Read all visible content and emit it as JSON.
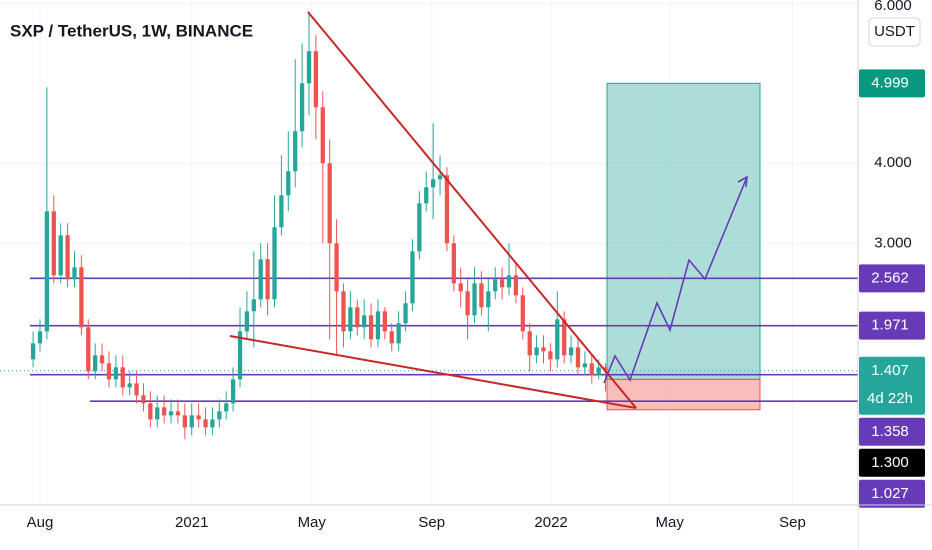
{
  "chart_data": {
    "type": "candlestick",
    "title": "SXP / TetherUS, 1W, BINANCE",
    "currency": "USDT",
    "up_color": "#26a69a",
    "down_color": "#ef5350",
    "open": [
      1.55,
      1.75,
      1.9,
      3.4,
      2.6,
      3.1,
      2.55,
      2.7,
      1.95,
      1.4,
      1.6,
      1.5,
      1.3,
      1.45,
      1.2,
      1.25,
      1.1,
      1.0,
      0.8,
      0.95,
      0.85,
      0.9,
      0.85,
      0.7,
      0.85,
      0.8,
      0.7,
      0.8,
      0.9,
      1.0,
      1.3,
      1.9,
      2.15,
      2.3,
      2.8,
      2.3,
      3.2,
      3.6,
      3.9,
      4.4,
      5.0,
      5.4,
      4.7,
      4.0,
      3.0,
      2.4,
      1.9,
      2.2,
      1.95,
      2.1,
      1.8,
      2.15,
      1.9,
      1.75,
      2.0,
      2.25,
      2.9,
      3.5,
      3.7,
      3.8,
      3.85,
      3.0,
      2.5,
      2.4,
      2.1,
      2.5,
      2.2,
      2.4,
      2.55,
      2.45,
      2.6,
      2.35,
      1.9,
      1.6,
      1.7,
      1.65,
      1.55,
      2.05,
      1.6,
      1.7,
      1.45,
      1.5,
      1.35,
      1.45
    ],
    "high": [
      1.9,
      2.05,
      4.95,
      3.6,
      3.25,
      3.25,
      2.9,
      2.85,
      2.05,
      1.75,
      1.75,
      1.65,
      1.6,
      1.6,
      1.4,
      1.4,
      1.25,
      1.15,
      1.1,
      1.1,
      1.05,
      1.05,
      1.0,
      1.0,
      1.0,
      0.95,
      0.95,
      1.05,
      1.15,
      1.45,
      2.2,
      2.4,
      2.9,
      3.0,
      3.0,
      3.6,
      4.1,
      4.4,
      5.3,
      5.5,
      5.9,
      5.6,
      4.9,
      4.3,
      3.3,
      2.5,
      2.4,
      2.3,
      2.3,
      2.25,
      2.3,
      2.2,
      2.0,
      2.15,
      2.4,
      3.05,
      3.65,
      3.9,
      4.5,
      4.1,
      3.95,
      3.1,
      2.7,
      2.55,
      2.7,
      2.65,
      2.55,
      2.7,
      2.7,
      3.0,
      2.75,
      2.45,
      2.0,
      1.85,
      1.85,
      1.75,
      2.4,
      2.15,
      1.85,
      1.8,
      1.65,
      1.6,
      1.55,
      1.5
    ],
    "low": [
      1.45,
      1.65,
      1.8,
      2.5,
      2.5,
      2.45,
      2.45,
      1.85,
      1.3,
      1.3,
      1.4,
      1.2,
      1.2,
      1.1,
      1.1,
      1.0,
      0.9,
      0.7,
      0.7,
      0.75,
      0.75,
      0.75,
      0.55,
      0.6,
      0.7,
      0.6,
      0.6,
      0.7,
      0.8,
      0.9,
      1.2,
      1.8,
      1.7,
      2.2,
      2.1,
      2.2,
      3.1,
      3.4,
      3.7,
      4.2,
      4.6,
      4.3,
      3.0,
      1.8,
      1.6,
      1.7,
      1.8,
      1.85,
      1.8,
      1.7,
      1.7,
      1.8,
      1.65,
      1.65,
      1.9,
      2.15,
      2.8,
      3.4,
      3.3,
      3.6,
      2.9,
      2.4,
      2.2,
      1.8,
      2.0,
      2.1,
      1.9,
      2.3,
      2.3,
      2.35,
      2.25,
      1.8,
      1.4,
      1.5,
      1.5,
      1.4,
      1.45,
      1.5,
      1.5,
      1.35,
      1.35,
      1.25,
      1.3,
      1.15
    ],
    "close": [
      1.75,
      1.9,
      3.4,
      2.6,
      3.1,
      2.55,
      2.7,
      1.95,
      1.4,
      1.6,
      1.5,
      1.3,
      1.45,
      1.2,
      1.25,
      1.1,
      1.0,
      0.8,
      0.95,
      0.85,
      0.9,
      0.85,
      0.7,
      0.85,
      0.8,
      0.7,
      0.8,
      0.9,
      1.0,
      1.3,
      1.9,
      2.15,
      2.3,
      2.8,
      2.3,
      3.2,
      3.6,
      3.9,
      4.4,
      5.0,
      5.4,
      4.7,
      4.0,
      3.0,
      2.4,
      1.9,
      2.2,
      1.95,
      2.1,
      1.8,
      2.15,
      1.9,
      1.75,
      2.0,
      2.25,
      2.9,
      3.5,
      3.7,
      3.8,
      3.85,
      3.0,
      2.5,
      2.4,
      2.1,
      2.5,
      2.2,
      2.4,
      2.55,
      2.45,
      2.6,
      2.35,
      1.9,
      1.6,
      1.7,
      1.65,
      1.55,
      2.05,
      1.6,
      1.7,
      1.45,
      1.5,
      1.35,
      1.45,
      1.41
    ],
    "xlim": [
      -4.8,
      119.6
    ],
    "xticks": [
      {
        "value": 1.0,
        "label": "Aug"
      },
      {
        "value": 23.0,
        "label": "2021"
      },
      {
        "value": 40.4,
        "label": "May"
      },
      {
        "value": 57.8,
        "label": "Sep"
      },
      {
        "value": 75.1,
        "label": "2022"
      },
      {
        "value": 92.3,
        "label": "May"
      },
      {
        "value": 110.1,
        "label": "Sep"
      }
    ],
    "ylim": [
      -0.27,
      6.04
    ],
    "yticks": [
      {
        "value": 6,
        "label": "6.000"
      },
      {
        "value": 4,
        "label": "4.000"
      },
      {
        "value": 3,
        "label": "3.000"
      }
    ],
    "price_tags": [
      {
        "value": 4.999,
        "label": "4.999",
        "color": "#089981"
      },
      {
        "value": 2.562,
        "label": "2.562",
        "color": "#673ab7",
        "line": true
      },
      {
        "value": 1.971,
        "label": "1.971",
        "color": "#673ab7",
        "line": true
      },
      {
        "value": 1.407,
        "label": "1.407",
        "sublabel": "4d 22h",
        "color": "#26a69a"
      },
      {
        "value": 1.358,
        "label": "1.358",
        "color": "#673ab7",
        "line": true
      },
      {
        "value": 1.3,
        "label": "1.300",
        "color": "#000000"
      },
      {
        "value": 1.027,
        "label": "1.027",
        "color": "#673ab7",
        "line": true
      }
    ],
    "position": {
      "target": 4.999,
      "entry": 1.3,
      "stop": 0.92
    }
  }
}
